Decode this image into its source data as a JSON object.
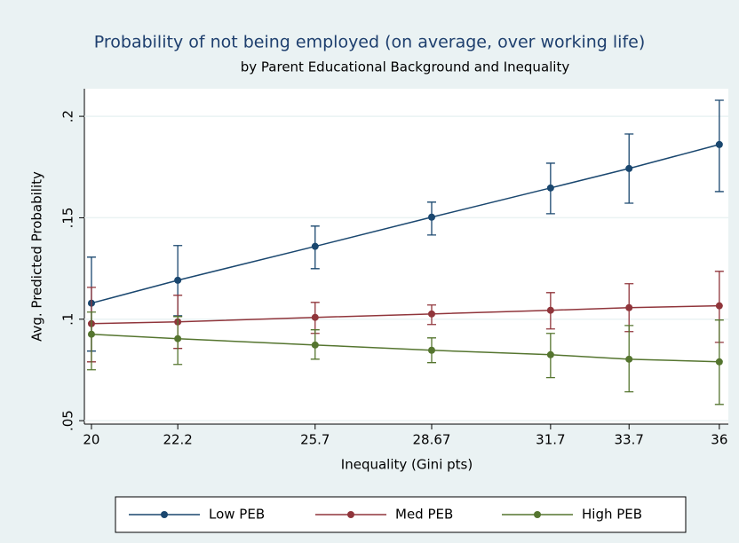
{
  "chart_data": {
    "type": "line",
    "title": "Probability of not being employed (on average, over working life)",
    "subtitle": "by Parent Educational Background and Inequality",
    "x_label": "Inequality (Gini pts)",
    "y_label": "Avg. Predicted Probability",
    "x": [
      20,
      22.2,
      25.7,
      28.67,
      31.7,
      33.7,
      36
    ],
    "series": [
      {
        "name": "Low PEB",
        "color": "#1a476f",
        "values": [
          0.1079,
          0.1192,
          0.1359,
          0.1503,
          0.1647,
          0.1743,
          0.1861
        ],
        "ci_low": [
          0.0843,
          0.1017,
          0.1249,
          0.1415,
          0.152,
          0.1572,
          0.1629
        ],
        "ci_high": [
          0.1306,
          0.1363,
          0.1459,
          0.1577,
          0.1769,
          0.1913,
          0.2079
        ]
      },
      {
        "name": "Med PEB",
        "color": "#90353b",
        "values": [
          0.0978,
          0.0987,
          0.1009,
          0.1026,
          0.1044,
          0.1057,
          0.1066
        ],
        "ci_low": [
          0.079,
          0.0856,
          0.093,
          0.0974,
          0.0952,
          0.0939,
          0.0886
        ],
        "ci_high": [
          0.1157,
          0.1118,
          0.1083,
          0.107,
          0.1131,
          0.1175,
          0.1236
        ]
      },
      {
        "name": "High PEB",
        "color": "#55752f",
        "values": [
          0.0926,
          0.0904,
          0.0873,
          0.0847,
          0.0825,
          0.0803,
          0.079
        ],
        "ci_low": [
          0.0751,
          0.0777,
          0.0803,
          0.0786,
          0.0712,
          0.0642,
          0.058
        ],
        "ci_high": [
          0.1035,
          0.1013,
          0.0948,
          0.0908,
          0.093,
          0.0969,
          0.0996
        ]
      }
    ],
    "xlim": [
      19.82,
      36.23
    ],
    "ylim": [
      0.0483,
      0.2136
    ],
    "xticks": [
      20,
      22.2,
      25.7,
      28.67,
      31.7,
      33.7,
      36
    ],
    "yticks": [
      {
        "value": 0.05,
        "label": ".05"
      },
      {
        "value": 0.1,
        "label": ".1"
      },
      {
        "value": 0.15,
        "label": ".15"
      },
      {
        "value": 0.2,
        "label": ".2"
      }
    ],
    "grid": true,
    "legend": "bottom"
  }
}
